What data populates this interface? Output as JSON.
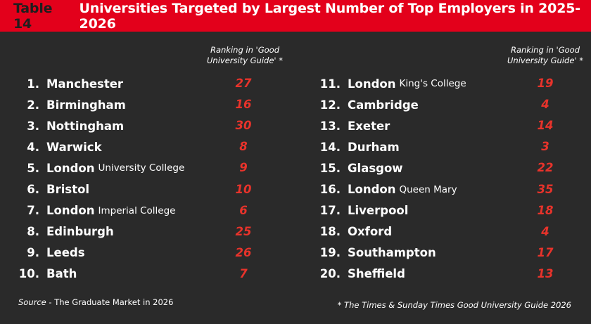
{
  "header": {
    "table_number": "Table 14",
    "title": "Universities Targeted by Largest Number of Top Employers in 2025-2026"
  },
  "column_heading": {
    "line1": "Ranking in 'Good",
    "line2": "University Guide' *"
  },
  "left_column": [
    {
      "num": "1.",
      "name": "Manchester",
      "sub": "",
      "rank": "27"
    },
    {
      "num": "2.",
      "name": "Birmingham",
      "sub": "",
      "rank": "16"
    },
    {
      "num": "3.",
      "name": "Nottingham",
      "sub": "",
      "rank": "30"
    },
    {
      "num": "4.",
      "name": "Warwick",
      "sub": "",
      "rank": "8"
    },
    {
      "num": "5.",
      "name": "London",
      "sub": "University College",
      "rank": "9"
    },
    {
      "num": "6.",
      "name": "Bristol",
      "sub": "",
      "rank": "10"
    },
    {
      "num": "7.",
      "name": "London",
      "sub": "Imperial College",
      "rank": "6"
    },
    {
      "num": "8.",
      "name": "Edinburgh",
      "sub": "",
      "rank": "25"
    },
    {
      "num": "9.",
      "name": "Leeds",
      "sub": "",
      "rank": "26"
    },
    {
      "num": "10.",
      "name": "Bath",
      "sub": "",
      "rank": "7"
    }
  ],
  "right_column": [
    {
      "num": "11.",
      "name": "London",
      "sub": "King's College",
      "rank": "19"
    },
    {
      "num": "12.",
      "name": "Cambridge",
      "sub": "",
      "rank": "4"
    },
    {
      "num": "13.",
      "name": "Exeter",
      "sub": "",
      "rank": "14"
    },
    {
      "num": "14.",
      "name": "Durham",
      "sub": "",
      "rank": "3"
    },
    {
      "num": "15.",
      "name": "Glasgow",
      "sub": "",
      "rank": "22"
    },
    {
      "num": "16.",
      "name": "London",
      "sub": "Queen Mary",
      "rank": "35"
    },
    {
      "num": "17.",
      "name": "Liverpool",
      "sub": "",
      "rank": "18"
    },
    {
      "num": "18.",
      "name": "Oxford",
      "sub": "",
      "rank": "4"
    },
    {
      "num": "19.",
      "name": "Southampton",
      "sub": "",
      "rank": "17"
    },
    {
      "num": "20.",
      "name": "Sheffield",
      "sub": "",
      "rank": "13"
    }
  ],
  "footer": {
    "source_label": "Source",
    "source_text": " - The Graduate Market in 2026",
    "note": "* The Times & Sunday Times Good University Guide 2026"
  },
  "colors": {
    "header_bg": "#e3001b",
    "background": "#2a2a2a",
    "rank_text": "#e8332b"
  }
}
